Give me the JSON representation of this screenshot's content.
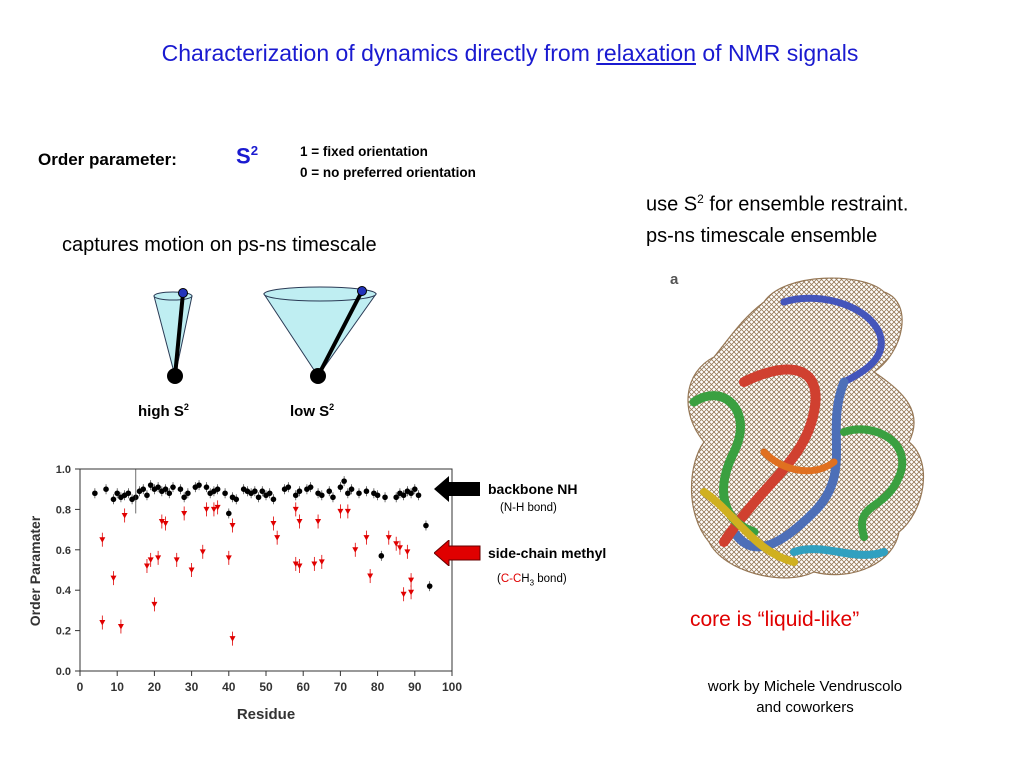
{
  "title": {
    "before": "Characterization of dynamics directly from ",
    "underlined": "relaxation",
    "after": " of NMR signals"
  },
  "order_parameter": {
    "label": "Order parameter:",
    "symbol": "S",
    "symbol_sup": "2",
    "definitions": [
      "1 =  fixed orientation",
      "0 =  no preferred orientation"
    ]
  },
  "captures": "captures motion on ps-ns timescale",
  "cones": [
    {
      "label": "high S",
      "sup": "2"
    },
    {
      "label": "low S",
      "sup": "2"
    }
  ],
  "ensemble": {
    "line1_before": "use S",
    "line1_sup": "2",
    "line1_after": " for ensemble restraint.",
    "line2": "ps-ns timescale ensemble",
    "panel_letter": "a"
  },
  "arrows": {
    "backbone": {
      "label": "backbone NH",
      "sub": "(N-H bond)",
      "color": "#000000"
    },
    "methyl": {
      "label": "side-chain methyl",
      "sub_open": "(",
      "sub_c1": "C-",
      "sub_c2": "C",
      "sub_h": "H",
      "sub_3": "3",
      "sub_close": " bond)",
      "color": "#e00000"
    }
  },
  "core": "core is “liquid-like”",
  "credit": [
    "work by Michele Vendruscolo",
    "and coworkers"
  ],
  "colors": {
    "title_blue": "#1a1ad0",
    "cone_fill": "#bfeef2",
    "methyl_red": "#e00000",
    "backbone_black": "#000000"
  },
  "chart_data": {
    "type": "scatter",
    "xlabel": "Residue",
    "ylabel": "Order Paramater",
    "xlim": [
      0,
      100
    ],
    "ylim": [
      0,
      1.0
    ],
    "x_ticks": [
      "0",
      "10",
      "20",
      "30",
      "40",
      "50",
      "60",
      "70",
      "80",
      "90",
      "100"
    ],
    "y_ticks": [
      "0.0",
      "0.2",
      "0.4",
      "0.6",
      "0.8",
      "1.0"
    ],
    "grid": false,
    "series": [
      {
        "name": "backbone NH",
        "color": "#000000",
        "marker": "circle",
        "points": [
          [
            4,
            0.88
          ],
          [
            7,
            0.9
          ],
          [
            9,
            0.85
          ],
          [
            10,
            0.88
          ],
          [
            11,
            0.86
          ],
          [
            12,
            0.87
          ],
          [
            13,
            0.88
          ],
          [
            14,
            0.85
          ],
          [
            15,
            0.86
          ],
          [
            16,
            0.89
          ],
          [
            17,
            0.9
          ],
          [
            18,
            0.87
          ],
          [
            19,
            0.92
          ],
          [
            20,
            0.9
          ],
          [
            21,
            0.91
          ],
          [
            22,
            0.89
          ],
          [
            23,
            0.9
          ],
          [
            24,
            0.88
          ],
          [
            25,
            0.91
          ],
          [
            27,
            0.9
          ],
          [
            28,
            0.86
          ],
          [
            29,
            0.88
          ],
          [
            31,
            0.91
          ],
          [
            32,
            0.92
          ],
          [
            34,
            0.91
          ],
          [
            35,
            0.88
          ],
          [
            36,
            0.89
          ],
          [
            37,
            0.9
          ],
          [
            39,
            0.88
          ],
          [
            40,
            0.78
          ],
          [
            41,
            0.86
          ],
          [
            42,
            0.85
          ],
          [
            44,
            0.9
          ],
          [
            45,
            0.89
          ],
          [
            46,
            0.88
          ],
          [
            47,
            0.89
          ],
          [
            48,
            0.86
          ],
          [
            49,
            0.89
          ],
          [
            50,
            0.87
          ],
          [
            51,
            0.88
          ],
          [
            52,
            0.85
          ],
          [
            55,
            0.9
          ],
          [
            56,
            0.91
          ],
          [
            58,
            0.87
          ],
          [
            59,
            0.89
          ],
          [
            61,
            0.9
          ],
          [
            62,
            0.91
          ],
          [
            64,
            0.88
          ],
          [
            65,
            0.87
          ],
          [
            67,
            0.89
          ],
          [
            68,
            0.86
          ],
          [
            70,
            0.91
          ],
          [
            71,
            0.94
          ],
          [
            72,
            0.88
          ],
          [
            73,
            0.9
          ],
          [
            75,
            0.88
          ],
          [
            77,
            0.89
          ],
          [
            79,
            0.88
          ],
          [
            80,
            0.87
          ],
          [
            81,
            0.57
          ],
          [
            82,
            0.86
          ],
          [
            85,
            0.86
          ],
          [
            86,
            0.88
          ],
          [
            87,
            0.87
          ],
          [
            88,
            0.89
          ],
          [
            89,
            0.88
          ],
          [
            90,
            0.9
          ],
          [
            91,
            0.87
          ],
          [
            93,
            0.72
          ],
          [
            94,
            0.42
          ]
        ]
      },
      {
        "name": "side-chain methyl",
        "color": "#e00000",
        "marker": "triangle-down",
        "points": [
          [
            6,
            0.65
          ],
          [
            6,
            0.24
          ],
          [
            9,
            0.46
          ],
          [
            11,
            0.22
          ],
          [
            12,
            0.77
          ],
          [
            18,
            0.52
          ],
          [
            19,
            0.55
          ],
          [
            20,
            0.33
          ],
          [
            21,
            0.56
          ],
          [
            22,
            0.74
          ],
          [
            23,
            0.73
          ],
          [
            26,
            0.55
          ],
          [
            28,
            0.78
          ],
          [
            30,
            0.5
          ],
          [
            33,
            0.59
          ],
          [
            34,
            0.8
          ],
          [
            36,
            0.8
          ],
          [
            37,
            0.81
          ],
          [
            40,
            0.56
          ],
          [
            41,
            0.16
          ],
          [
            41,
            0.72
          ],
          [
            52,
            0.73
          ],
          [
            53,
            0.66
          ],
          [
            58,
            0.8
          ],
          [
            58,
            0.53
          ],
          [
            59,
            0.52
          ],
          [
            59,
            0.74
          ],
          [
            63,
            0.53
          ],
          [
            64,
            0.74
          ],
          [
            65,
            0.54
          ],
          [
            70,
            0.79
          ],
          [
            72,
            0.79
          ],
          [
            74,
            0.6
          ],
          [
            77,
            0.66
          ],
          [
            78,
            0.47
          ],
          [
            83,
            0.66
          ],
          [
            85,
            0.63
          ],
          [
            86,
            0.61
          ],
          [
            87,
            0.38
          ],
          [
            88,
            0.59
          ],
          [
            89,
            0.45
          ],
          [
            89,
            0.39
          ]
        ]
      }
    ]
  }
}
